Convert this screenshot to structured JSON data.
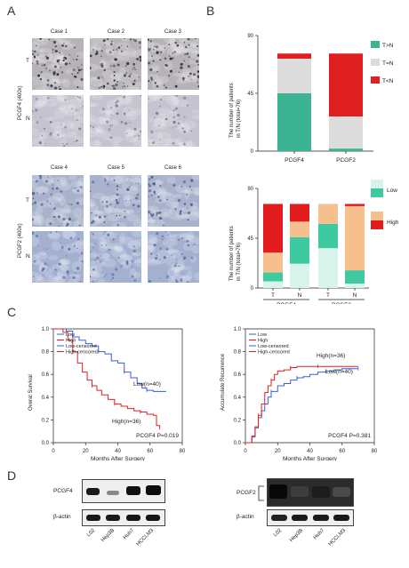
{
  "panels": {
    "A": "A",
    "B": "B",
    "C": "C",
    "D": "D"
  },
  "panelA": {
    "cases_top": [
      "Case 1",
      "Case 2",
      "Case 3"
    ],
    "cases_bottom": [
      "Case 4",
      "Case 5",
      "Case 6"
    ],
    "row_labels": {
      "T": "T",
      "N": "N"
    },
    "side_top": "PCGF4 (400x)",
    "side_bottom": "PCGF2 (400x)"
  },
  "chart_data": [
    {
      "type": "bar",
      "stacked": true,
      "categories": [
        "PCGF4",
        "PCGF2"
      ],
      "ylabel": "The number of patients\nin T/N (total=76)",
      "ylim": [
        0,
        90
      ],
      "yticks": [
        0,
        45,
        90
      ],
      "series": [
        {
          "name": "T>N",
          "color": "#3cb493",
          "values": [
            45,
            2
          ]
        },
        {
          "name": "T=N",
          "color": "#dcdcdc",
          "values": [
            27,
            25
          ]
        },
        {
          "name": "T<N",
          "color": "#e02020",
          "values": [
            4,
            49
          ]
        }
      ],
      "legend": [
        "T>N",
        "T=N",
        "T<N"
      ],
      "legend_position": "right"
    },
    {
      "type": "bar",
      "stacked": true,
      "ylabel": "The number of patients\nin T/N (total=76)",
      "ylim": [
        0,
        90
      ],
      "yticks": [
        0,
        45,
        90
      ],
      "groups": [
        "PCGF4",
        "PCGF2"
      ],
      "bar_labels": [
        "T",
        "N",
        "T",
        "N"
      ],
      "series": [
        {
          "name": "Low (light)",
          "color": "#d8f4ea",
          "values": [
            6,
            22,
            36,
            4
          ]
        },
        {
          "name": "Low (dark)",
          "color": "#3ec9a0",
          "values": [
            8,
            24,
            22,
            12
          ]
        },
        {
          "name": "High (light)",
          "color": "#f5c08e",
          "values": [
            18,
            14,
            18,
            58
          ]
        },
        {
          "name": "High (dark)",
          "color": "#e21c1c",
          "values": [
            44,
            16,
            0,
            2
          ]
        }
      ],
      "legend_labels": {
        "low": "Low",
        "high": "High"
      },
      "legend_position": "right"
    },
    {
      "type": "line",
      "ylabel": "Overal Survival",
      "xlabel": "Months After Surgery",
      "xlim": [
        0,
        80
      ],
      "ylim": [
        0,
        1
      ],
      "xticks": [
        0,
        20,
        40,
        60,
        80
      ],
      "yticks": [
        "0.0",
        "0.2",
        "0.4",
        "0.6",
        "0.8",
        "1.0"
      ],
      "legend": [
        "Low",
        "High",
        "Low-censored",
        "High-censored"
      ],
      "annotation": "PCGF4   P=0.019",
      "series": [
        {
          "name": "Low(n=40)",
          "color": "#3a5fd0",
          "x": [
            0,
            5,
            8,
            12,
            16,
            20,
            24,
            28,
            32,
            36,
            40,
            44,
            48,
            52,
            55,
            58,
            62,
            66,
            70
          ],
          "y": [
            1.0,
            1.0,
            0.98,
            0.93,
            0.9,
            0.87,
            0.85,
            0.8,
            0.78,
            0.72,
            0.7,
            0.62,
            0.57,
            0.52,
            0.48,
            0.46,
            0.45,
            0.45,
            0.45
          ]
        },
        {
          "name": "High(n=36)",
          "color": "#e02020",
          "x": [
            0,
            6,
            9,
            12,
            15,
            18,
            21,
            24,
            27,
            30,
            34,
            38,
            42,
            46,
            50,
            54,
            58,
            62,
            64,
            66
          ],
          "y": [
            1.0,
            0.97,
            0.9,
            0.8,
            0.7,
            0.62,
            0.55,
            0.5,
            0.46,
            0.42,
            0.38,
            0.34,
            0.32,
            0.3,
            0.28,
            0.27,
            0.25,
            0.24,
            0.15,
            0.13
          ]
        }
      ]
    },
    {
      "type": "line",
      "ylabel": "Accumulate Recurrence",
      "xlabel": "Months After Surgery",
      "xlim": [
        0,
        80
      ],
      "ylim": [
        0,
        1
      ],
      "xticks": [
        0,
        20,
        40,
        60,
        80
      ],
      "yticks": [
        "0.0",
        "0.2",
        "0.4",
        "0.6",
        "0.8",
        "1.0"
      ],
      "legend": [
        "Low",
        "High",
        "Low-censored",
        "High-censored"
      ],
      "annotation": "PCGF4   P=0.381",
      "series": [
        {
          "name": "Low(n=40)",
          "color": "#3a5fd0",
          "x": [
            0,
            4,
            6,
            8,
            10,
            12,
            14,
            16,
            20,
            24,
            28,
            32,
            36,
            40,
            45,
            50,
            55,
            60,
            65,
            70
          ],
          "y": [
            0.0,
            0.05,
            0.13,
            0.22,
            0.28,
            0.34,
            0.4,
            0.45,
            0.5,
            0.52,
            0.55,
            0.57,
            0.58,
            0.6,
            0.62,
            0.63,
            0.64,
            0.65,
            0.65,
            0.65
          ]
        },
        {
          "name": "High(n=36)",
          "color": "#e02020",
          "x": [
            0,
            4,
            6,
            8,
            10,
            12,
            14,
            16,
            18,
            20,
            24,
            28,
            32,
            36,
            40,
            45,
            50,
            60,
            70
          ],
          "y": [
            0.0,
            0.06,
            0.14,
            0.24,
            0.34,
            0.44,
            0.5,
            0.55,
            0.6,
            0.63,
            0.64,
            0.66,
            0.67,
            0.67,
            0.67,
            0.67,
            0.67,
            0.67,
            0.67
          ]
        }
      ]
    }
  ],
  "survival_labels": {
    "low": "Low(n=40)",
    "high": "High(n=36)"
  },
  "recurrence_labels": {
    "low": "Low(n=40)",
    "high": "High(n=36)"
  },
  "panelD": {
    "left_labels": [
      "PCGF4",
      "β-actin"
    ],
    "right_labels": [
      "PCGF2",
      "β-actin"
    ],
    "lanes": [
      "L02",
      "Hep3B",
      "Huh7",
      "HCCLM3"
    ]
  }
}
